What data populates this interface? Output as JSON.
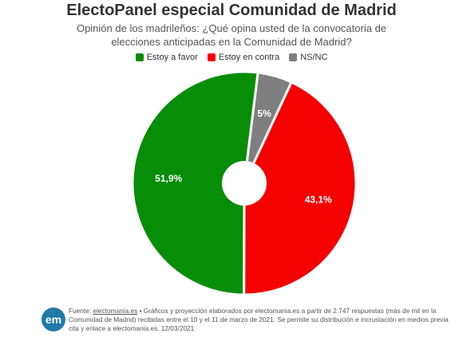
{
  "header": {
    "title": "ElectoPanel especial Comunidad de Madrid",
    "subtitle": "Opinión de los madrileños: ¿Qué opina usted de la convocatoria de elecciones anticipadas en la Comunidad de Madrid?"
  },
  "chart_data": {
    "type": "pie",
    "donut": true,
    "title": "ElectoPanel especial Comunidad de Madrid",
    "subtitle": "Opinión de los madrileños: ¿Qué opina usted de la convocatoria de elecciones anticipadas en la Comunidad de Madrid?",
    "legend_position": "top-center",
    "slices": [
      {
        "name": "NS/NC",
        "value": 5.0,
        "label": "5%",
        "color": "#7f7f7f"
      },
      {
        "name": "Estoy en contra",
        "value": 43.1,
        "label": "43,1%",
        "color": "#f50000"
      },
      {
        "name": "Estoy a favor",
        "value": 51.9,
        "label": "51,9%",
        "color": "#078d07"
      }
    ],
    "legend": [
      {
        "name": "Estoy a favor",
        "color": "#078d07"
      },
      {
        "name": "Estoy en contra",
        "color": "#f50000"
      },
      {
        "name": "NS/NC",
        "color": "#7f7f7f"
      }
    ]
  },
  "footer": {
    "logo_text": "em",
    "source_label": "Fuente: ",
    "source_link": "electomania.es",
    "source_text": " • Gráficos y proyección elaborados por electomania.es a partir de 2.747 respuestas (más de mil en la Comunidad de Madrid) recibidas entre el 10 y el 11 de marzo de 2021. Se permite su distribución e incrustación en medios previa cita y enlace a electomania.es. 12/03/2021"
  }
}
